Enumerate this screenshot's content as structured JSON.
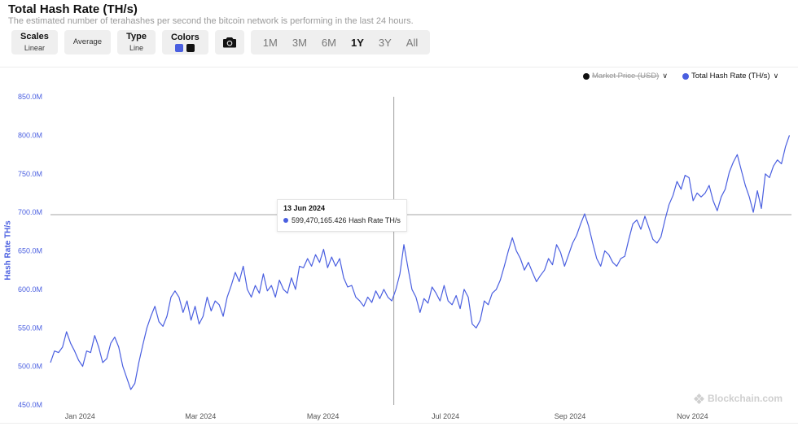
{
  "header": {
    "title": "Total Hash Rate (TH/s)",
    "subtitle": "The estimated number of terahashes per second the bitcoin network is performing in the last 24 hours."
  },
  "toolbar": {
    "scales": {
      "label": "Scales",
      "value": "Linear"
    },
    "average": {
      "label": "Average"
    },
    "type": {
      "label": "Type",
      "value": "Line"
    },
    "colors": {
      "label": "Colors",
      "swatches": [
        "#4a5fe0",
        "#111111"
      ]
    },
    "camera_icon": "camera-icon",
    "ranges": [
      "1M",
      "3M",
      "6M",
      "1Y",
      "3Y",
      "All"
    ],
    "active_range": "1Y"
  },
  "legend": [
    {
      "label": "Market Price (USD)",
      "color": "#111111",
      "enabled": false
    },
    {
      "label": "Total Hash Rate (TH/s)",
      "color": "#4a5fe0",
      "enabled": true
    }
  ],
  "tooltip": {
    "date": "13 Jun 2024",
    "value_text": "599,470,165.426 Hash Rate TH/s"
  },
  "watermark": "Blockchain.com",
  "chart_data": {
    "type": "line",
    "ylabel": "Hash Rate TH/s",
    "ylim": [
      450,
      850
    ],
    "yticks": [
      450,
      500,
      550,
      600,
      650,
      700,
      750,
      800,
      850
    ],
    "ytick_labels": [
      "450.0M",
      "500.0M",
      "550.0M",
      "600.0M",
      "650.0M",
      "700.0M",
      "750.0M",
      "800.0M",
      "850.0M"
    ],
    "xlim": [
      "2023-12-25",
      "2024-12-28"
    ],
    "xticks": [
      "2024-01-01",
      "2024-03-01",
      "2024-05-01",
      "2024-07-01",
      "2024-09-01",
      "2024-11-01"
    ],
    "xtick_labels": [
      "Jan 2024",
      "Mar 2024",
      "May 2024",
      "Jul 2024",
      "Sep 2024",
      "Nov 2024"
    ],
    "crosshair": {
      "x": "2024-06-13",
      "y": 697
    },
    "series": [
      {
        "name": "Total Hash Rate (TH/s)",
        "color": "#4a5fe0",
        "points": [
          [
            "2023-12-25",
            505
          ],
          [
            "2023-12-27",
            520
          ],
          [
            "2023-12-29",
            518
          ],
          [
            "2023-12-31",
            525
          ],
          [
            "2024-01-02",
            545
          ],
          [
            "2024-01-04",
            530
          ],
          [
            "2024-01-06",
            520
          ],
          [
            "2024-01-08",
            508
          ],
          [
            "2024-01-10",
            500
          ],
          [
            "2024-01-12",
            520
          ],
          [
            "2024-01-14",
            518
          ],
          [
            "2024-01-16",
            540
          ],
          [
            "2024-01-18",
            525
          ],
          [
            "2024-01-20",
            505
          ],
          [
            "2024-01-22",
            510
          ],
          [
            "2024-01-24",
            530
          ],
          [
            "2024-01-26",
            538
          ],
          [
            "2024-01-28",
            525
          ],
          [
            "2024-01-30",
            500
          ],
          [
            "2024-02-01",
            485
          ],
          [
            "2024-02-03",
            470
          ],
          [
            "2024-02-05",
            478
          ],
          [
            "2024-02-07",
            505
          ],
          [
            "2024-02-09",
            528
          ],
          [
            "2024-02-11",
            550
          ],
          [
            "2024-02-13",
            565
          ],
          [
            "2024-02-15",
            578
          ],
          [
            "2024-02-17",
            558
          ],
          [
            "2024-02-19",
            552
          ],
          [
            "2024-02-21",
            565
          ],
          [
            "2024-02-23",
            590
          ],
          [
            "2024-02-25",
            598
          ],
          [
            "2024-02-27",
            590
          ],
          [
            "2024-02-29",
            570
          ],
          [
            "2024-03-02",
            585
          ],
          [
            "2024-03-04",
            560
          ],
          [
            "2024-03-06",
            578
          ],
          [
            "2024-03-08",
            555
          ],
          [
            "2024-03-10",
            565
          ],
          [
            "2024-03-12",
            590
          ],
          [
            "2024-03-14",
            572
          ],
          [
            "2024-03-16",
            585
          ],
          [
            "2024-03-18",
            580
          ],
          [
            "2024-03-20",
            565
          ],
          [
            "2024-03-22",
            590
          ],
          [
            "2024-03-24",
            605
          ],
          [
            "2024-03-26",
            622
          ],
          [
            "2024-03-28",
            610
          ],
          [
            "2024-03-30",
            630
          ],
          [
            "2024-04-01",
            600
          ],
          [
            "2024-04-03",
            590
          ],
          [
            "2024-04-05",
            605
          ],
          [
            "2024-04-07",
            595
          ],
          [
            "2024-04-09",
            620
          ],
          [
            "2024-04-11",
            598
          ],
          [
            "2024-04-13",
            605
          ],
          [
            "2024-04-15",
            590
          ],
          [
            "2024-04-17",
            612
          ],
          [
            "2024-04-19",
            600
          ],
          [
            "2024-04-21",
            595
          ],
          [
            "2024-04-23",
            615
          ],
          [
            "2024-04-25",
            600
          ],
          [
            "2024-04-27",
            630
          ],
          [
            "2024-04-29",
            628
          ],
          [
            "2024-05-01",
            640
          ],
          [
            "2024-05-03",
            630
          ],
          [
            "2024-05-05",
            645
          ],
          [
            "2024-05-07",
            635
          ],
          [
            "2024-05-09",
            652
          ],
          [
            "2024-05-11",
            628
          ],
          [
            "2024-05-13",
            642
          ],
          [
            "2024-05-15",
            630
          ],
          [
            "2024-05-17",
            640
          ],
          [
            "2024-05-19",
            615
          ],
          [
            "2024-05-21",
            603
          ],
          [
            "2024-05-23",
            605
          ],
          [
            "2024-05-25",
            590
          ],
          [
            "2024-05-27",
            585
          ],
          [
            "2024-05-29",
            578
          ],
          [
            "2024-05-31",
            590
          ],
          [
            "2024-06-02",
            583
          ],
          [
            "2024-06-04",
            598
          ],
          [
            "2024-06-06",
            588
          ],
          [
            "2024-06-08",
            600
          ],
          [
            "2024-06-10",
            590
          ],
          [
            "2024-06-12",
            585
          ],
          [
            "2024-06-14",
            600
          ],
          [
            "2024-06-16",
            620
          ],
          [
            "2024-06-18",
            658
          ],
          [
            "2024-06-20",
            628
          ],
          [
            "2024-06-22",
            600
          ],
          [
            "2024-06-24",
            590
          ],
          [
            "2024-06-26",
            570
          ],
          [
            "2024-06-28",
            588
          ],
          [
            "2024-06-30",
            582
          ],
          [
            "2024-07-02",
            603
          ],
          [
            "2024-07-04",
            595
          ],
          [
            "2024-07-06",
            585
          ],
          [
            "2024-07-08",
            605
          ],
          [
            "2024-07-10",
            585
          ],
          [
            "2024-07-12",
            580
          ],
          [
            "2024-07-14",
            592
          ],
          [
            "2024-07-16",
            575
          ],
          [
            "2024-07-18",
            600
          ],
          [
            "2024-07-20",
            590
          ],
          [
            "2024-07-22",
            555
          ],
          [
            "2024-07-24",
            550
          ],
          [
            "2024-07-26",
            560
          ],
          [
            "2024-07-28",
            585
          ],
          [
            "2024-07-30",
            580
          ],
          [
            "2024-08-01",
            595
          ],
          [
            "2024-08-03",
            600
          ],
          [
            "2024-08-05",
            612
          ],
          [
            "2024-08-07",
            630
          ],
          [
            "2024-08-09",
            650
          ],
          [
            "2024-08-11",
            667
          ],
          [
            "2024-08-13",
            650
          ],
          [
            "2024-08-15",
            640
          ],
          [
            "2024-08-17",
            625
          ],
          [
            "2024-08-19",
            635
          ],
          [
            "2024-08-21",
            622
          ],
          [
            "2024-08-23",
            610
          ],
          [
            "2024-08-25",
            618
          ],
          [
            "2024-08-27",
            625
          ],
          [
            "2024-08-29",
            640
          ],
          [
            "2024-08-31",
            632
          ],
          [
            "2024-09-02",
            658
          ],
          [
            "2024-09-04",
            648
          ],
          [
            "2024-09-06",
            630
          ],
          [
            "2024-09-08",
            645
          ],
          [
            "2024-09-10",
            660
          ],
          [
            "2024-09-12",
            670
          ],
          [
            "2024-09-14",
            685
          ],
          [
            "2024-09-16",
            698
          ],
          [
            "2024-09-18",
            682
          ],
          [
            "2024-09-20",
            660
          ],
          [
            "2024-09-22",
            640
          ],
          [
            "2024-09-24",
            630
          ],
          [
            "2024-09-26",
            650
          ],
          [
            "2024-09-28",
            645
          ],
          [
            "2024-09-30",
            635
          ],
          [
            "2024-10-02",
            630
          ],
          [
            "2024-10-04",
            640
          ],
          [
            "2024-10-06",
            643
          ],
          [
            "2024-10-08",
            665
          ],
          [
            "2024-10-10",
            685
          ],
          [
            "2024-10-12",
            690
          ],
          [
            "2024-10-14",
            678
          ],
          [
            "2024-10-16",
            695
          ],
          [
            "2024-10-18",
            680
          ],
          [
            "2024-10-20",
            665
          ],
          [
            "2024-10-22",
            660
          ],
          [
            "2024-10-24",
            668
          ],
          [
            "2024-10-26",
            690
          ],
          [
            "2024-10-28",
            710
          ],
          [
            "2024-10-30",
            722
          ],
          [
            "2024-11-01",
            740
          ],
          [
            "2024-11-03",
            730
          ],
          [
            "2024-11-05",
            748
          ],
          [
            "2024-11-07",
            745
          ],
          [
            "2024-11-09",
            715
          ],
          [
            "2024-11-11",
            725
          ],
          [
            "2024-11-13",
            720
          ],
          [
            "2024-11-15",
            725
          ],
          [
            "2024-11-17",
            735
          ],
          [
            "2024-11-19",
            715
          ],
          [
            "2024-11-21",
            702
          ],
          [
            "2024-11-23",
            720
          ],
          [
            "2024-11-25",
            730
          ],
          [
            "2024-11-27",
            752
          ],
          [
            "2024-11-29",
            765
          ],
          [
            "2024-12-01",
            775
          ],
          [
            "2024-12-03",
            755
          ],
          [
            "2024-12-05",
            735
          ],
          [
            "2024-12-07",
            720
          ],
          [
            "2024-12-09",
            700
          ],
          [
            "2024-12-11",
            728
          ],
          [
            "2024-12-13",
            705
          ],
          [
            "2024-12-15",
            750
          ],
          [
            "2024-12-17",
            745
          ],
          [
            "2024-12-19",
            760
          ],
          [
            "2024-12-21",
            768
          ],
          [
            "2024-12-23",
            763
          ],
          [
            "2024-12-25",
            785
          ],
          [
            "2024-12-27",
            800
          ]
        ]
      }
    ]
  }
}
